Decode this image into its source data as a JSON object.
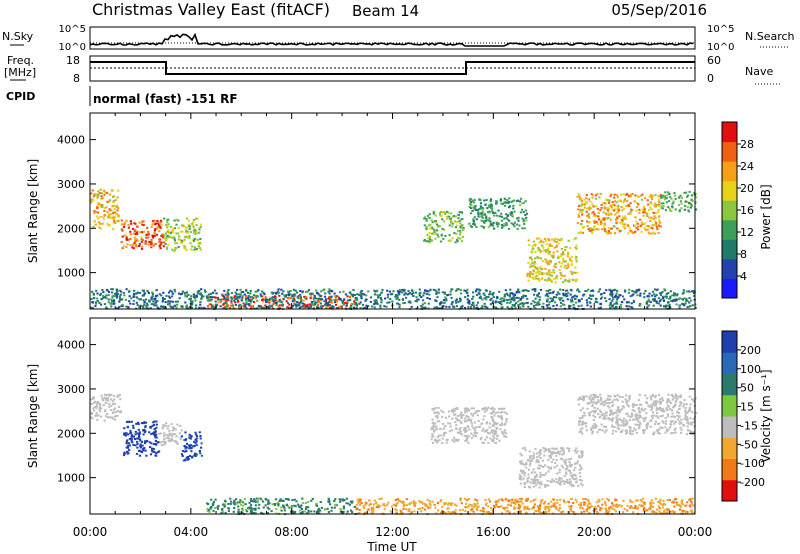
{
  "header": {
    "title": "Christmas Valley East (fitACF)",
    "beam": "Beam 14",
    "date": "05/Sep/2016"
  },
  "top_panels": {
    "nsky_label": "N.Sky",
    "nsearch_label": "N.Search",
    "freq_label_1": "Freq.",
    "freq_label_2": "[MHz]",
    "nave_label": "Nave",
    "cpid_label": "CPID",
    "cpid_value": "normal (fast) -151 RF",
    "noise_ticks_left": [
      "10^5",
      "10^0"
    ],
    "noise_ticks_right": [
      "10^5",
      "10^0"
    ],
    "freq_ticks_left": [
      "18",
      "8"
    ],
    "nave_ticks_right": [
      "60",
      "0"
    ]
  },
  "colorbars": {
    "power": {
      "label": "Power [dB]",
      "ticks": [
        "28",
        "24",
        "20",
        "16",
        "12",
        "8",
        "4"
      ]
    },
    "velocity": {
      "label": "Velocity [m s⁻¹]",
      "ticks": [
        "200",
        "100",
        "50",
        "15",
        "-15",
        "-50",
        "-100",
        "-200"
      ]
    }
  },
  "chart_data": [
    {
      "type": "heatmap",
      "ylabel": "Slant Range [km]",
      "xlabel": "Time UT",
      "x_ticks": [
        "00:00",
        "04:00",
        "08:00",
        "12:00",
        "16:00",
        "20:00",
        "00:00"
      ],
      "y_ticks": [
        1000,
        2000,
        3000,
        4000
      ],
      "ylim": [
        180,
        4600
      ],
      "xlim_hours": [
        0,
        24
      ],
      "quantity": "Power [dB]",
      "scale": [
        0,
        30
      ],
      "regions": [
        {
          "t0": 0.0,
          "t1": 1.1,
          "r0": 2000,
          "r1": 2900,
          "value": 20
        },
        {
          "t0": 1.2,
          "t1": 2.9,
          "r0": 1550,
          "r1": 2200,
          "value": 26
        },
        {
          "t0": 2.9,
          "t1": 4.4,
          "r0": 1500,
          "r1": 2250,
          "value": 16
        },
        {
          "t0": 4.6,
          "t1": 10.5,
          "r0": 200,
          "r1": 500,
          "value": 27
        },
        {
          "t0": 0.0,
          "t1": 24.0,
          "r0": 200,
          "r1": 650,
          "value": 8
        },
        {
          "t0": 13.2,
          "t1": 14.8,
          "r0": 1700,
          "r1": 2400,
          "value": 14
        },
        {
          "t0": 15.0,
          "t1": 17.3,
          "r0": 2000,
          "r1": 2700,
          "value": 11
        },
        {
          "t0": 17.3,
          "t1": 19.3,
          "r0": 800,
          "r1": 1800,
          "value": 18
        },
        {
          "t0": 19.3,
          "t1": 22.6,
          "r0": 1900,
          "r1": 2800,
          "value": 21
        },
        {
          "t0": 22.6,
          "t1": 24.0,
          "r0": 2400,
          "r1": 2850,
          "value": 12
        }
      ]
    },
    {
      "type": "heatmap",
      "ylabel": "Slant Range [km]",
      "xlabel": "Time UT",
      "x_ticks": [
        "00:00",
        "04:00",
        "08:00",
        "12:00",
        "16:00",
        "20:00",
        "00:00"
      ],
      "y_ticks": [
        1000,
        2000,
        3000,
        4000
      ],
      "ylim": [
        180,
        4600
      ],
      "xlim_hours": [
        0,
        24
      ],
      "quantity": "Velocity [m s⁻¹]",
      "scale": [
        -250,
        250
      ],
      "regions": [
        {
          "t0": 0.0,
          "t1": 1.2,
          "r0": 2300,
          "r1": 2900,
          "value": 0
        },
        {
          "t0": 1.3,
          "t1": 2.7,
          "r0": 1500,
          "r1": 2300,
          "value": 210
        },
        {
          "t0": 2.7,
          "t1": 3.6,
          "r0": 1750,
          "r1": 2250,
          "value": 0
        },
        {
          "t0": 3.6,
          "t1": 4.4,
          "r0": 1400,
          "r1": 2050,
          "value": 180
        },
        {
          "t0": 4.6,
          "t1": 10.5,
          "r0": 200,
          "r1": 550,
          "value": 35
        },
        {
          "t0": 10.5,
          "t1": 24.0,
          "r0": 200,
          "r1": 550,
          "value": -45
        },
        {
          "t0": 13.5,
          "t1": 16.5,
          "r0": 1800,
          "r1": 2600,
          "value": 0
        },
        {
          "t0": 17.0,
          "t1": 19.5,
          "r0": 800,
          "r1": 1700,
          "value": 0
        },
        {
          "t0": 19.3,
          "t1": 24.0,
          "r0": 2000,
          "r1": 2900,
          "value": 0
        }
      ]
    }
  ]
}
